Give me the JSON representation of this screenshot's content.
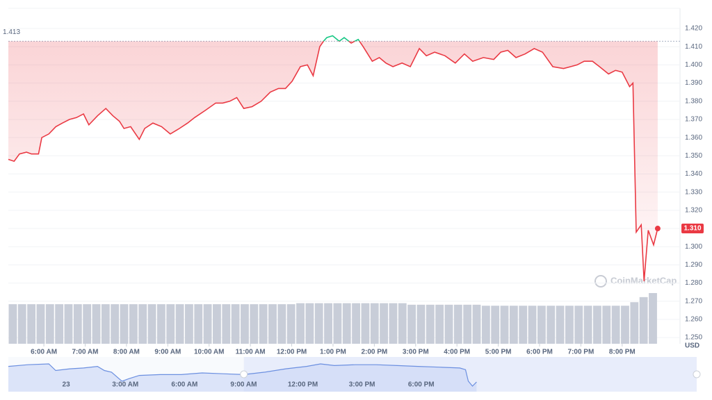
{
  "chart_data": {
    "type": "line",
    "x": [
      5.14,
      5.28,
      5.41,
      5.58,
      5.7,
      5.87,
      5.95,
      6.12,
      6.29,
      6.45,
      6.62,
      6.79,
      6.96,
      7.09,
      7.3,
      7.5,
      7.67,
      7.83,
      7.94,
      8.1,
      8.31,
      8.44,
      8.64,
      8.85,
      9.06,
      9.28,
      9.48,
      9.65,
      9.91,
      10.16,
      10.33,
      10.5,
      10.67,
      10.84,
      11.04,
      11.26,
      11.48,
      11.68,
      11.85,
      12.01,
      12.21,
      12.38,
      12.52,
      12.68,
      12.77,
      12.85,
      12.99,
      13.15,
      13.27,
      13.44,
      13.61,
      13.73,
      13.95,
      14.12,
      14.28,
      14.45,
      14.67,
      14.87,
      15.09,
      15.26,
      15.46,
      15.71,
      15.96,
      16.18,
      16.38,
      16.64,
      16.89,
      17.06,
      17.23,
      17.43,
      17.65,
      17.87,
      18.07,
      18.32,
      18.58,
      18.75,
      18.91,
      19.08,
      19.28,
      19.45,
      19.67,
      19.84,
      20.0,
      20.18,
      20.26,
      20.34,
      20.46,
      20.53,
      20.63,
      20.76,
      20.86
    ],
    "values": [
      1.348,
      1.347,
      1.351,
      1.352,
      1.351,
      1.351,
      1.36,
      1.362,
      1.366,
      1.368,
      1.37,
      1.371,
      1.373,
      1.367,
      1.372,
      1.376,
      1.372,
      1.369,
      1.365,
      1.366,
      1.359,
      1.365,
      1.368,
      1.366,
      1.362,
      1.365,
      1.368,
      1.371,
      1.375,
      1.379,
      1.379,
      1.38,
      1.382,
      1.376,
      1.377,
      1.38,
      1.385,
      1.387,
      1.387,
      1.391,
      1.399,
      1.4,
      1.394,
      1.41,
      1.413,
      1.415,
      1.416,
      1.413,
      1.415,
      1.412,
      1.414,
      1.41,
      1.402,
      1.404,
      1.401,
      1.399,
      1.401,
      1.399,
      1.409,
      1.405,
      1.407,
      1.405,
      1.401,
      1.406,
      1.402,
      1.404,
      1.403,
      1.407,
      1.408,
      1.404,
      1.406,
      1.409,
      1.407,
      1.399,
      1.398,
      1.399,
      1.4,
      1.402,
      1.402,
      1.399,
      1.395,
      1.397,
      1.396,
      1.388,
      1.39,
      1.308,
      1.312,
      1.281,
      1.309,
      1.301,
      1.31
    ],
    "value_labels": [
      null,
      null,
      null,
      null,
      null,
      null,
      null,
      null,
      null,
      null,
      null,
      null,
      null,
      null,
      null,
      null,
      null,
      null,
      null,
      null,
      null,
      null,
      null,
      null,
      null,
      null,
      null,
      null,
      null,
      null,
      null,
      null,
      null,
      null,
      null,
      null,
      null,
      null,
      null,
      null,
      null,
      null,
      null,
      null,
      null,
      null,
      null,
      null,
      null,
      null,
      null,
      null,
      null,
      null,
      null,
      null,
      null,
      null,
      null,
      null,
      null,
      null,
      null,
      null,
      null,
      null,
      null,
      null,
      null,
      null,
      null,
      null,
      null,
      null,
      null,
      null,
      null,
      null,
      null,
      null,
      null,
      null,
      null,
      null,
      null,
      null,
      null,
      null,
      null,
      null,
      "1.310"
    ],
    "baseline": 1.413,
    "up_color": "#16c784",
    "down_color": "#ea3943",
    "grid": true,
    "xlim": [
      5.14,
      21.4
    ],
    "ylim": [
      1.2466,
      1.4311
    ],
    "xticks": [
      {
        "value": 6,
        "label": "6:00 AM"
      },
      {
        "value": 7,
        "label": "7:00 AM"
      },
      {
        "value": 8,
        "label": "8:00 AM"
      },
      {
        "value": 9,
        "label": "9:00 AM"
      },
      {
        "value": 10,
        "label": "10:00 AM"
      },
      {
        "value": 11,
        "label": "11:00 AM"
      },
      {
        "value": 12,
        "label": "12:00 PM"
      },
      {
        "value": 13,
        "label": "1:00 PM"
      },
      {
        "value": 14,
        "label": "2:00 PM"
      },
      {
        "value": 15,
        "label": "3:00 PM"
      },
      {
        "value": 16,
        "label": "4:00 PM"
      },
      {
        "value": 17,
        "label": "5:00 PM"
      },
      {
        "value": 18,
        "label": "6:00 PM"
      },
      {
        "value": 19,
        "label": "7:00 PM"
      },
      {
        "value": 20,
        "label": "8:00 PM"
      }
    ],
    "yticks": [
      {
        "value": 1.25,
        "label": "1.250"
      },
      {
        "value": 1.26,
        "label": "1.260"
      },
      {
        "value": 1.27,
        "label": "1.270"
      },
      {
        "value": 1.28,
        "label": "1.280"
      },
      {
        "value": 1.29,
        "label": "1.290"
      },
      {
        "value": 1.3,
        "label": "1.300"
      },
      {
        "value": 1.31,
        "label": "1.310"
      },
      {
        "value": 1.32,
        "label": "1.320"
      },
      {
        "value": 1.33,
        "label": "1.330"
      },
      {
        "value": 1.34,
        "label": "1.340"
      },
      {
        "value": 1.35,
        "label": "1.350"
      },
      {
        "value": 1.36,
        "label": "1.360"
      },
      {
        "value": 1.37,
        "label": "1.370"
      },
      {
        "value": 1.38,
        "label": "1.380"
      },
      {
        "value": 1.39,
        "label": "1.390"
      },
      {
        "value": 1.4,
        "label": "1.400"
      },
      {
        "value": 1.41,
        "label": "1.410"
      },
      {
        "value": 1.42,
        "label": "1.420"
      }
    ],
    "y_unit": "USD",
    "watermark": "CoinMarketCap",
    "volume": {
      "color": "#c8cdd8",
      "values": [
        78,
        78,
        78,
        78,
        78,
        78,
        78,
        78,
        78,
        78,
        78,
        78,
        78,
        78,
        78,
        78,
        78,
        78,
        78,
        78,
        78,
        78,
        78,
        78,
        78,
        78,
        78,
        78,
        78,
        78,
        78,
        80,
        80,
        80,
        80,
        80,
        80,
        80,
        80,
        80,
        80,
        80,
        80,
        77,
        77,
        77,
        77,
        77,
        77,
        77,
        77,
        75,
        75,
        75,
        75,
        75,
        75,
        75,
        75,
        75,
        75,
        75,
        75,
        75,
        75,
        75,
        75,
        82,
        92,
        100
      ]
    },
    "navigator": {
      "color": "#6b8fe0",
      "x": [
        -2.93,
        -1.94,
        -0.88,
        -0.53,
        0.18,
        0.88,
        1.59,
        1.94,
        2.3,
        2.83,
        3.18,
        3.71,
        4.77,
        5.83,
        6.89,
        7.95,
        9.01,
        10.07,
        11.13,
        12.19,
        12.9,
        13.6,
        14.66,
        15.72,
        16.78,
        17.84,
        18.9,
        19.96,
        20.25,
        20.39,
        20.6,
        20.81
      ],
      "values": [
        1.4065,
        1.4155,
        1.42,
        1.384,
        1.393,
        1.3975,
        1.4065,
        1.384,
        1.375,
        1.3255,
        1.339,
        1.357,
        1.3615,
        1.3615,
        1.3705,
        1.366,
        1.3615,
        1.375,
        1.393,
        1.4065,
        1.42,
        1.411,
        1.4155,
        1.4155,
        1.411,
        1.4065,
        1.402,
        1.3975,
        1.3885,
        1.3255,
        1.2985,
        1.321
      ],
      "xlim": [
        -2.93,
        31.97
      ],
      "xticks": [
        {
          "value": 0,
          "label": "23"
        },
        {
          "value": 3,
          "label": "3:00 AM"
        },
        {
          "value": 6,
          "label": "6:00 AM"
        },
        {
          "value": 9,
          "label": "9:00 AM"
        },
        {
          "value": 12,
          "label": "12:00 PM"
        },
        {
          "value": 15,
          "label": "3:00 PM"
        },
        {
          "value": 18,
          "label": "6:00 PM"
        }
      ],
      "window": [
        9.01,
        31.97
      ]
    }
  }
}
